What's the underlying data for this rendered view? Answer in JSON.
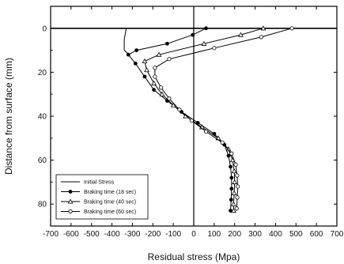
{
  "chart_data": {
    "type": "line",
    "xlabel": "Residual stress (Mpa)",
    "ylabel": "Distance from surface (mm)",
    "xlim": [
      -700,
      700
    ],
    "ylim": [
      -10,
      90
    ],
    "y_inverted": true,
    "x_ticks": [
      -700,
      -600,
      -500,
      -400,
      -300,
      -200,
      -100,
      0,
      100,
      200,
      300,
      400,
      500,
      600,
      700
    ],
    "x_tick_labels": [
      "-700",
      "-600",
      "-500",
      "-400",
      "-300",
      "-200",
      "-100",
      "0",
      "100",
      "200",
      "300",
      "400",
      "500",
      "600",
      "700"
    ],
    "y_ticks": [
      0,
      20,
      40,
      60,
      80
    ],
    "y_tick_labels": [
      "0",
      "20",
      "40",
      "60",
      "80"
    ],
    "grid": false,
    "legend_position": "bottom-left",
    "series": [
      {
        "name": "Initial Stress",
        "marker": "none",
        "points": [
          [
            -330,
            0
          ],
          [
            -340,
            5
          ],
          [
            -340,
            10
          ],
          [
            -315,
            12
          ]
        ]
      },
      {
        "name": "Braking time (18 sec)",
        "marker": "filled-circle",
        "points": [
          [
            60,
            0
          ],
          [
            -5,
            3
          ],
          [
            -130,
            7
          ],
          [
            -280,
            10
          ],
          [
            -320,
            12
          ],
          [
            -285,
            16
          ],
          [
            -240,
            22
          ],
          [
            -195,
            28
          ],
          [
            -130,
            33
          ],
          [
            -60,
            38
          ],
          [
            20,
            43
          ],
          [
            100,
            48
          ],
          [
            150,
            53
          ],
          [
            170,
            58
          ],
          [
            180,
            63
          ],
          [
            185,
            68
          ],
          [
            185,
            73
          ],
          [
            183,
            78
          ],
          [
            180,
            83
          ]
        ]
      },
      {
        "name": "Braking time (40 sec)",
        "marker": "open-triangle",
        "points": [
          [
            340,
            0
          ],
          [
            230,
            3
          ],
          [
            50,
            7
          ],
          [
            -170,
            12
          ],
          [
            -240,
            15
          ],
          [
            -230,
            19
          ],
          [
            -195,
            25
          ],
          [
            -155,
            30
          ],
          [
            -100,
            35
          ],
          [
            -40,
            40
          ],
          [
            40,
            45
          ],
          [
            120,
            50
          ],
          [
            170,
            55
          ],
          [
            190,
            60
          ],
          [
            198,
            65
          ],
          [
            200,
            70
          ],
          [
            198,
            75
          ],
          [
            195,
            80
          ],
          [
            195,
            83
          ]
        ]
      },
      {
        "name": "Braking time (60 sec)",
        "marker": "open-circle",
        "points": [
          [
            480,
            0
          ],
          [
            330,
            4
          ],
          [
            100,
            9
          ],
          [
            -120,
            14
          ],
          [
            -190,
            18
          ],
          [
            -190,
            22
          ],
          [
            -160,
            27
          ],
          [
            -120,
            32
          ],
          [
            -70,
            37
          ],
          [
            -10,
            42
          ],
          [
            60,
            47
          ],
          [
            140,
            52
          ],
          [
            185,
            57
          ],
          [
            205,
            62
          ],
          [
            212,
            67
          ],
          [
            215,
            72
          ],
          [
            213,
            77
          ],
          [
            210,
            82
          ]
        ]
      }
    ]
  }
}
